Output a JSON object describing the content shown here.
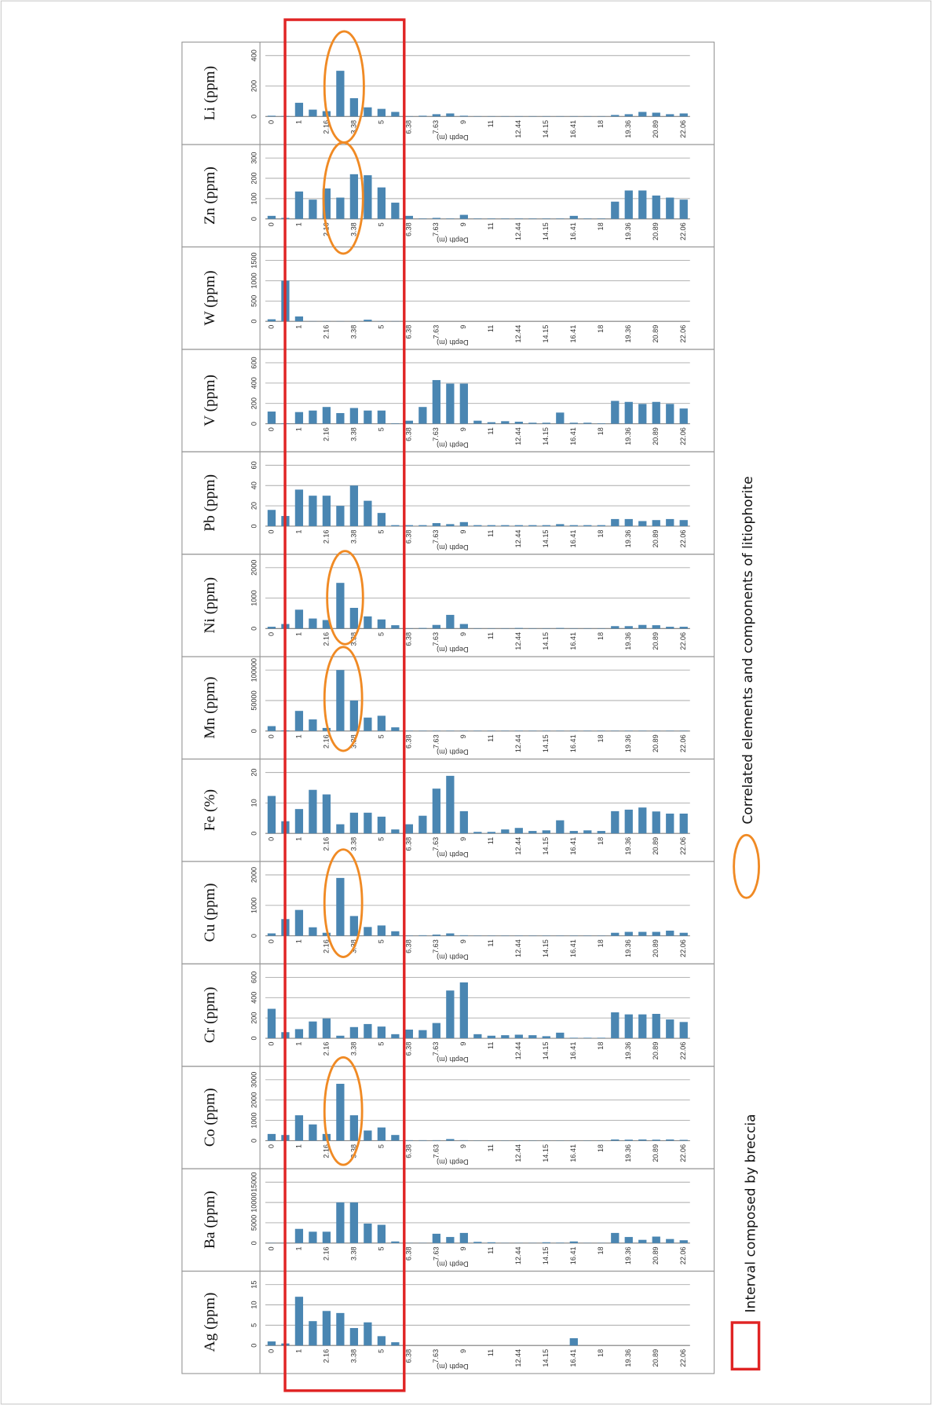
{
  "chart_data": [
    {
      "type": "bar",
      "y_label": "Li (ppm)",
      "x_label": "Depth (m)",
      "color": "#4a86b2",
      "grid": true,
      "categories": [
        "0",
        null,
        "1",
        null,
        "2.16",
        null,
        "3.38",
        null,
        "5",
        null,
        "6.38",
        null,
        "7.63",
        null,
        "9",
        null,
        "11",
        null,
        "12.44",
        null,
        "14.15",
        null,
        "16.41",
        null,
        "18",
        null,
        "19.36",
        null,
        "20.89",
        null,
        "22.06"
      ],
      "values": [
        5,
        3,
        90,
        45,
        35,
        300,
        120,
        60,
        50,
        30,
        2,
        5,
        15,
        20,
        5,
        2,
        2,
        2,
        2,
        2,
        2,
        2,
        2,
        2,
        2,
        10,
        15,
        30,
        25,
        15,
        20
      ],
      "ylim": [
        0,
        400
      ],
      "yticks": [
        0,
        200,
        400
      ]
    },
    {
      "type": "bar",
      "y_label": "Zn (ppm)",
      "x_label": "Depth (m)",
      "color": "#4a86b2",
      "grid": true,
      "categories": [
        "0",
        null,
        "1",
        null,
        "2.16",
        null,
        "3.38",
        null,
        "5",
        null,
        "6.38",
        null,
        "7.63",
        null,
        "9",
        null,
        "11",
        null,
        "12.44",
        null,
        "14.15",
        null,
        "16.41",
        null,
        "18",
        null,
        "19.36",
        null,
        "20.89",
        null,
        "22.06"
      ],
      "values": [
        15,
        5,
        135,
        95,
        150,
        105,
        220,
        215,
        155,
        80,
        15,
        2,
        5,
        2,
        20,
        2,
        2,
        2,
        2,
        2,
        2,
        2,
        15,
        2,
        2,
        85,
        140,
        140,
        115,
        105,
        95
      ],
      "ylim": [
        0,
        300
      ],
      "yticks": [
        0,
        100,
        200,
        300
      ]
    },
    {
      "type": "bar",
      "y_label": "W (ppm)",
      "x_label": "Depth (m)",
      "color": "#4a86b2",
      "grid": true,
      "categories": [
        "0",
        null,
        "1",
        null,
        "2.16",
        null,
        "3.38",
        null,
        "5",
        null,
        "6.38",
        null,
        "7.63",
        null,
        "9",
        null,
        "11",
        null,
        "12.44",
        null,
        "14.15",
        null,
        "16.41",
        null,
        "18",
        null,
        "19.36",
        null,
        "20.89",
        null,
        "22.06"
      ],
      "values": [
        50,
        1000,
        120,
        5,
        5,
        5,
        5,
        40,
        5,
        5,
        0,
        0,
        0,
        0,
        0,
        0,
        0,
        0,
        0,
        0,
        0,
        0,
        0,
        0,
        0,
        0,
        0,
        0,
        0,
        0,
        0
      ],
      "ylim": [
        0,
        1500
      ],
      "yticks": [
        0,
        500,
        1000,
        1500
      ]
    },
    {
      "type": "bar",
      "y_label": "V (ppm)",
      "x_label": "Depth (m)",
      "color": "#4a86b2",
      "grid": true,
      "categories": [
        "0",
        null,
        "1",
        null,
        "2.16",
        null,
        "3.38",
        null,
        "5",
        null,
        "6.38",
        null,
        "7.63",
        null,
        "9",
        null,
        "11",
        null,
        "12.44",
        null,
        "14.15",
        null,
        "16.41",
        null,
        "18",
        null,
        "19.36",
        null,
        "20.89",
        null,
        "22.06"
      ],
      "values": [
        120,
        5,
        115,
        130,
        165,
        105,
        155,
        130,
        130,
        5,
        30,
        165,
        430,
        395,
        395,
        30,
        15,
        25,
        20,
        10,
        10,
        110,
        10,
        10,
        5,
        225,
        215,
        195,
        215,
        195,
        150
      ],
      "ylim": [
        0,
        600
      ],
      "yticks": [
        0,
        200,
        400,
        600
      ]
    },
    {
      "type": "bar",
      "y_label": "Pb (ppm)",
      "x_label": "Depth (m)",
      "color": "#4a86b2",
      "grid": true,
      "categories": [
        "0",
        null,
        "1",
        null,
        "2.16",
        null,
        "3.38",
        null,
        "5",
        null,
        "6.38",
        null,
        "7.63",
        null,
        "9",
        null,
        "11",
        null,
        "12.44",
        null,
        "14.15",
        null,
        "16.41",
        null,
        "18",
        null,
        "19.36",
        null,
        "20.89",
        null,
        "22.06"
      ],
      "values": [
        16,
        10,
        36,
        30,
        30,
        20,
        40,
        25,
        13,
        1,
        1,
        1,
        3,
        2,
        4,
        1,
        1,
        1,
        1,
        1,
        1,
        2,
        1,
        1,
        1,
        7,
        7,
        5,
        6,
        7,
        6
      ],
      "ylim": [
        0,
        60
      ],
      "yticks": [
        0,
        20,
        40,
        60
      ]
    },
    {
      "type": "bar",
      "y_label": "Ni (ppm)",
      "x_label": "Depth (m)",
      "color": "#4a86b2",
      "grid": true,
      "categories": [
        "0",
        null,
        "1",
        null,
        "2.16",
        null,
        "3.38",
        null,
        "5",
        null,
        "6.38",
        null,
        "7.63",
        null,
        "9",
        null,
        "11",
        null,
        "12.44",
        null,
        "14.15",
        null,
        "16.41",
        null,
        "18",
        null,
        "19.36",
        null,
        "20.89",
        null,
        "22.06"
      ],
      "values": [
        60,
        150,
        620,
        330,
        280,
        1500,
        680,
        400,
        300,
        110,
        10,
        20,
        120,
        450,
        150,
        10,
        10,
        10,
        20,
        10,
        10,
        20,
        10,
        10,
        10,
        80,
        80,
        120,
        110,
        60,
        60
      ],
      "ylim": [
        0,
        2000
      ],
      "yticks": [
        0,
        1000,
        2000
      ]
    },
    {
      "type": "bar",
      "y_label": "Mn (ppm)",
      "x_label": "Depth (m)",
      "color": "#4a86b2",
      "grid": true,
      "categories": [
        "0",
        null,
        "1",
        null,
        "2.16",
        null,
        "3.38",
        null,
        "5",
        null,
        "6.38",
        null,
        "7.63",
        null,
        "9",
        null,
        "11",
        null,
        "12.44",
        null,
        "14.15",
        null,
        "16.41",
        null,
        "18",
        null,
        "19.36",
        null,
        "20.89",
        null,
        "22.06"
      ],
      "values": [
        8000,
        1000,
        33000,
        19000,
        5000,
        100000,
        50000,
        22000,
        25000,
        6000,
        500,
        500,
        500,
        500,
        500,
        500,
        500,
        500,
        500,
        500,
        500,
        500,
        500,
        500,
        500,
        500,
        500,
        500,
        500,
        500,
        500
      ],
      "ylim": [
        0,
        100000
      ],
      "yticks": [
        0,
        50000,
        100000
      ]
    },
    {
      "type": "bar",
      "y_label": "Fe (%)",
      "x_label": "Depth (m)",
      "color": "#4a86b2",
      "grid": true,
      "categories": [
        "0",
        null,
        "1",
        null,
        "2.16",
        null,
        "3.38",
        null,
        "5",
        null,
        "6.38",
        null,
        "7.63",
        null,
        "9",
        null,
        "11",
        null,
        "12.44",
        null,
        "14.15",
        null,
        "16.41",
        null,
        "18",
        null,
        "19.36",
        null,
        "20.89",
        null,
        "22.06"
      ],
      "values": [
        12.3,
        4,
        8,
        14.3,
        12.8,
        3,
        6.8,
        6.8,
        5.5,
        1.3,
        3,
        5.8,
        14.7,
        18.9,
        7.3,
        0.5,
        0.5,
        1.3,
        1.8,
        0.8,
        1,
        4.3,
        0.8,
        1,
        0.8,
        7.3,
        7.8,
        8.5,
        7.2,
        6.5,
        6.5
      ],
      "ylim": [
        0,
        20
      ],
      "yticks": [
        0,
        10,
        20
      ]
    },
    {
      "type": "bar",
      "y_label": "Cu (ppm)",
      "x_label": "Depth (m)",
      "color": "#4a86b2",
      "grid": true,
      "categories": [
        "0",
        null,
        "1",
        null,
        "2.16",
        null,
        "3.38",
        null,
        "5",
        null,
        "6.38",
        null,
        "7.63",
        null,
        "9",
        null,
        "11",
        null,
        "12.44",
        null,
        "14.15",
        null,
        "16.41",
        null,
        "18",
        null,
        "19.36",
        null,
        "20.89",
        null,
        "22.06"
      ],
      "values": [
        80,
        550,
        850,
        280,
        100,
        1900,
        650,
        290,
        340,
        150,
        10,
        20,
        40,
        80,
        20,
        10,
        10,
        10,
        10,
        10,
        10,
        10,
        10,
        10,
        10,
        100,
        130,
        130,
        130,
        170,
        100
      ],
      "ylim": [
        0,
        2000
      ],
      "yticks": [
        0,
        1000,
        2000
      ]
    },
    {
      "type": "bar",
      "y_label": "Cr (ppm)",
      "x_label": "Depth (m)",
      "color": "#4a86b2",
      "grid": true,
      "categories": [
        "0",
        null,
        "1",
        null,
        "2.16",
        null,
        "3.38",
        null,
        "5",
        null,
        "6.38",
        null,
        "7.63",
        null,
        "9",
        null,
        "11",
        null,
        "12.44",
        null,
        "14.15",
        null,
        "16.41",
        null,
        "18",
        null,
        "19.36",
        null,
        "20.89",
        null,
        "22.06"
      ],
      "values": [
        290,
        60,
        90,
        165,
        195,
        25,
        110,
        140,
        115,
        40,
        85,
        80,
        150,
        470,
        550,
        40,
        25,
        30,
        35,
        30,
        20,
        55,
        5,
        5,
        5,
        255,
        235,
        235,
        240,
        185,
        160
      ],
      "ylim": [
        0,
        600
      ],
      "yticks": [
        0,
        200,
        400,
        600
      ]
    },
    {
      "type": "bar",
      "y_label": "Co (ppm)",
      "x_label": "Depth (m)",
      "color": "#4a86b2",
      "grid": true,
      "categories": [
        "0",
        null,
        "1",
        null,
        "2.16",
        null,
        "3.38",
        null,
        "5",
        null,
        "6.38",
        null,
        "7.63",
        null,
        "9",
        null,
        "11",
        null,
        "12.44",
        null,
        "14.15",
        null,
        "16.41",
        null,
        "18",
        null,
        "19.36",
        null,
        "20.89",
        null,
        "22.06"
      ],
      "values": [
        330,
        280,
        1250,
        800,
        330,
        2800,
        1250,
        500,
        650,
        280,
        20,
        20,
        20,
        80,
        20,
        10,
        10,
        10,
        10,
        10,
        10,
        10,
        10,
        10,
        10,
        60,
        50,
        60,
        50,
        60,
        40
      ],
      "ylim": [
        0,
        3000
      ],
      "yticks": [
        0,
        1000,
        2000,
        3000
      ]
    },
    {
      "type": "bar",
      "y_label": "Ba (ppm)",
      "x_label": "Depth (m)",
      "color": "#4a86b2",
      "grid": true,
      "categories": [
        "0",
        null,
        "1",
        null,
        "2.16",
        null,
        "3.38",
        null,
        "5",
        null,
        "6.38",
        null,
        "7.63",
        null,
        "9",
        null,
        "11",
        null,
        "12.44",
        null,
        "14.15",
        null,
        "16.41",
        null,
        "18",
        null,
        "19.36",
        null,
        "20.89",
        null,
        "22.06"
      ],
      "values": [
        50,
        50,
        3500,
        2800,
        2800,
        10000,
        10000,
        4800,
        4500,
        400,
        50,
        50,
        2300,
        1500,
        2500,
        300,
        200,
        50,
        50,
        50,
        200,
        100,
        400,
        50,
        50,
        2500,
        1500,
        800,
        1600,
        1000,
        700
      ],
      "ylim": [
        0,
        15000
      ],
      "yticks": [
        0,
        5000,
        10000,
        15000
      ]
    },
    {
      "type": "bar",
      "y_label": "Ag (ppm)",
      "x_label": "Depth (m)",
      "color": "#4a86b2",
      "grid": true,
      "categories": [
        "0",
        null,
        "1",
        null,
        "2.16",
        null,
        "3.38",
        null,
        "5",
        null,
        "6.38",
        null,
        "7.63",
        null,
        "9",
        null,
        "11",
        null,
        "12.44",
        null,
        "14.15",
        null,
        "16.41",
        null,
        "18",
        null,
        "19.36",
        null,
        "20.89",
        null,
        "22.06"
      ],
      "values": [
        1,
        0.5,
        12,
        6,
        8.5,
        8,
        4.3,
        5.7,
        2.3,
        0.8,
        0,
        0,
        0,
        0,
        0,
        0,
        0,
        0,
        0,
        0,
        0,
        0,
        1.8,
        0,
        0,
        0,
        0,
        0,
        0,
        0,
        0
      ],
      "ylim": [
        0,
        15
      ],
      "yticks": [
        0,
        5,
        10,
        15
      ]
    }
  ],
  "legend": {
    "breccia": "Interval composed by breccia",
    "correlated": "Correlated elements and components of litiophorite"
  }
}
